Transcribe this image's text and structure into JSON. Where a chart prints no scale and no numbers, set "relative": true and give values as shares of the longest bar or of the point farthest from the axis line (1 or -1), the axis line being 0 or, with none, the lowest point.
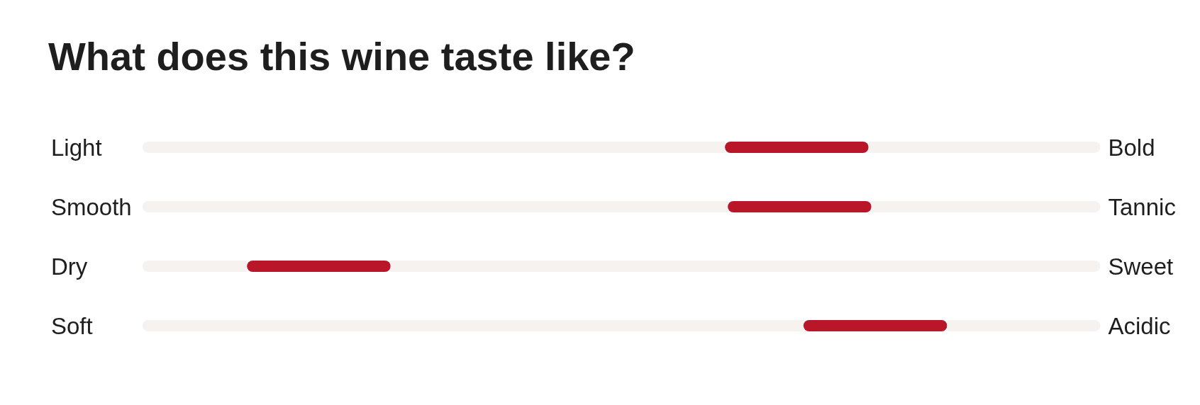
{
  "chart_data": {
    "type": "bar",
    "title": "What does this wine taste like?",
    "orientation": "horizontal",
    "stacked": true,
    "relative": true,
    "categories": [
      "Light",
      "Smooth",
      "Dry",
      "Soft"
    ],
    "y2_categories": [
      "Bold",
      "Tannic",
      "Sweet",
      "Acidic"
    ],
    "series": [
      {
        "color": "#f6f2ef",
        "values": [
          0.608,
          0.611,
          0.109,
          0.69
        ]
      },
      {
        "color": "#b91629",
        "values": [
          0.15,
          0.15,
          0.15,
          0.15
        ]
      },
      {
        "color": "#f6f2ef",
        "values": [
          0.242,
          0.239,
          0.741,
          0.16
        ]
      }
    ]
  }
}
